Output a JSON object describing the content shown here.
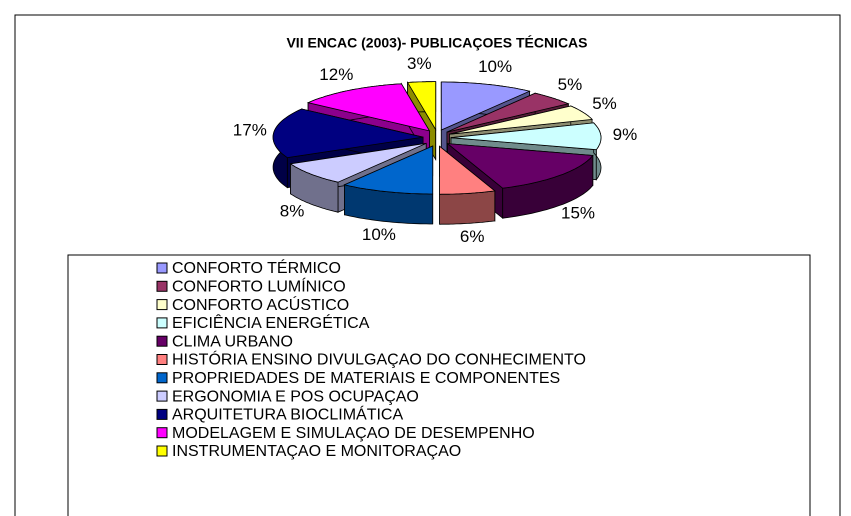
{
  "chart_data": {
    "type": "pie",
    "title": "VII ENCAC (2003)- PUBLICAÇOES TÉCNICAS",
    "categories": [
      "CONFORTO TÉRMICO",
      "CONFORTO LUMÍNICO",
      "CONFORTO ACÚSTICO",
      "EFICIÊNCIA ENERGÉTICA",
      "CLIMA URBANO",
      "HISTÓRIA ENSINO DIVULGAÇAO DO CONHECIMENTO",
      "PROPRIEDADES DE MATERIAIS E COMPONENTES",
      "ERGONOMIA E POS OCUPAÇAO",
      "ARQUITETURA BIOCLIMÁTICA",
      "MODELAGEM E SIMULAÇAO DE DESEMPENHO",
      "INSTRUMENTAÇAO E MONITORAÇAO"
    ],
    "values": [
      10,
      5,
      5,
      9,
      15,
      6,
      10,
      8,
      17,
      12,
      3
    ],
    "value_labels": [
      "10%",
      "5%",
      "5%",
      "9%",
      "15%",
      "6%",
      "10%",
      "8%",
      "17%",
      "12%",
      "3%"
    ],
    "colors": [
      "#9999ff",
      "#993366",
      "#ffffcc",
      "#ccffff",
      "#660066",
      "#ff8080",
      "#0066cc",
      "#ccccff",
      "#000080",
      "#ff00ff",
      "#ffff00"
    ]
  }
}
